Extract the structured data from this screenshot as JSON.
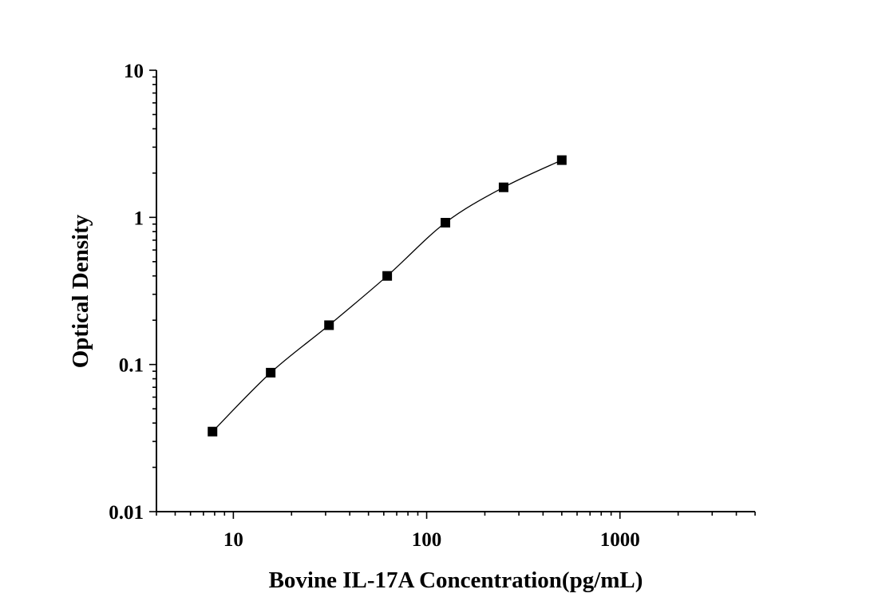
{
  "chart_data": {
    "type": "scatter",
    "title": "",
    "xlabel": "Bovine IL-17A Concentration(pg/mL)",
    "ylabel": "Optical Density",
    "xscale": "log",
    "yscale": "log",
    "xlim": [
      4,
      5000
    ],
    "ylim": [
      0.01,
      10
    ],
    "x_ticks": [
      10,
      100,
      1000
    ],
    "x_tick_labels": [
      "10",
      "100",
      "1000"
    ],
    "y_ticks": [
      0.01,
      0.1,
      1,
      10
    ],
    "y_tick_labels": [
      "0.01",
      "0.1",
      "1",
      "10"
    ],
    "grid": false,
    "legend": "none",
    "series": [
      {
        "x": [
          7.8,
          15.6,
          31.25,
          62.5,
          125,
          250,
          500
        ],
        "y": [
          0.035,
          0.088,
          0.185,
          0.4,
          0.92,
          1.6,
          2.45
        ],
        "marker": "square",
        "fit_line": true,
        "color": "#000000"
      }
    ]
  }
}
